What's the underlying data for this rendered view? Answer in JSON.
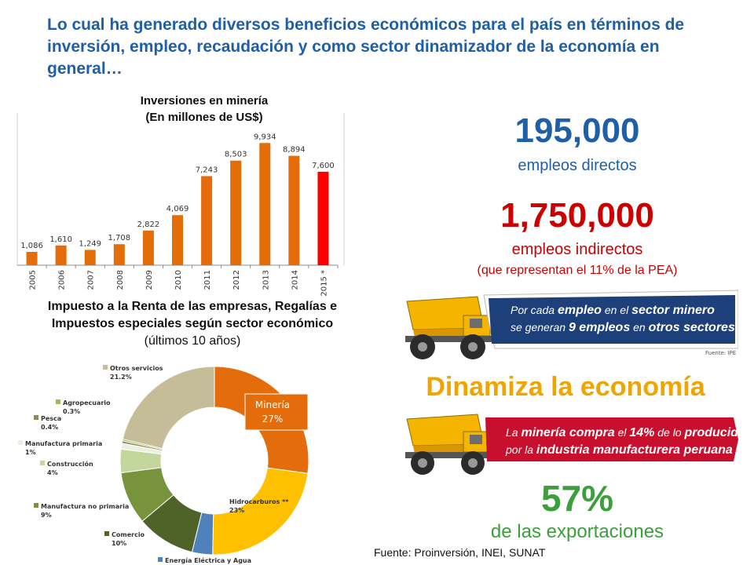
{
  "headline": "Lo cual ha generado diversos beneficios económicos para el país en términos de inversión, empleo, recaudación y como sector dinamizador de la economía en general…",
  "bar_title_line1": "Inversiones en minería",
  "bar_title_line2": "(En millones de US$)",
  "pie_title_line1": "Impuesto a la Renta de las empresas, Regalías e",
  "pie_title_line2": "Impuestos especiales según sector económico",
  "pie_title_line3": "(últimos 10 años)",
  "pie_callout_label": "Minería",
  "pie_callout_value": "27%",
  "stats": {
    "direct_value": "195,000",
    "direct_label": "empleos directos",
    "indirect_value": "1,750,000",
    "indirect_label": "empleos indirectos",
    "indirect_note": "(que representan el 11% de la PEA)",
    "exports_value": "57%",
    "exports_label": "de las exportaciones"
  },
  "dinamiza": "Dinamiza la economía",
  "banner1": {
    "line1a": "Por cada ",
    "line1b": "empleo",
    "line1c": " en el ",
    "line1d": "sector minero",
    "line2a": "se generan ",
    "line2b": "9 empleos",
    "line2c": " en ",
    "line2d": "otros sectores",
    "source": "Fuente: IPE"
  },
  "banner2": {
    "line1a": "La ",
    "line1b": "minería compra",
    "line1c": " el ",
    "line1d": "14%",
    "line1e": " de lo ",
    "line1f": "producido",
    "line2a": "por la ",
    "line2b": "industria manufacturera peruana"
  },
  "source": "Fuente: Proinversión, INEI, SUNAT",
  "colors": {
    "blue": "#1f5fa8",
    "red": "#cc0000",
    "orange": "#e46c0a",
    "gold": "#f0a400",
    "green": "#3c9e3c"
  },
  "chart_data": [
    {
      "type": "bar",
      "title": "Inversiones en minería (En millones de US$)",
      "categories": [
        "2005",
        "2006",
        "2007",
        "2008",
        "2009",
        "2010",
        "2011",
        "2012",
        "2013",
        "2014",
        "2015 *"
      ],
      "values": [
        1086,
        1610,
        1249,
        1708,
        2822,
        4069,
        7243,
        8503,
        9934,
        8894,
        7600
      ],
      "value_labels": [
        "1,086",
        "1,610",
        "1,249",
        "1,708",
        "2,822",
        "4,069",
        "7,243",
        "8,503",
        "9,934",
        "8,894",
        "7,600"
      ],
      "bar_colors": [
        "#e46c0a",
        "#e46c0a",
        "#e46c0a",
        "#e46c0a",
        "#e46c0a",
        "#e46c0a",
        "#e46c0a",
        "#e46c0a",
        "#e46c0a",
        "#e46c0a",
        "#ff0000"
      ],
      "ylim": [
        0,
        10000
      ]
    },
    {
      "type": "pie",
      "donut": true,
      "slices": [
        {
          "label": "Minería",
          "value": 27,
          "color": "#e46c0a"
        },
        {
          "label": "Hidrocarburos **",
          "pct": "23%",
          "value": 23,
          "color": "#ffc000"
        },
        {
          "label": "Energía Eléctrica y Agua",
          "pct": "",
          "value": 3.5,
          "color": "#4f81bd"
        },
        {
          "label": "Comercio",
          "pct": "10%",
          "value": 10,
          "color": "#4f6228"
        },
        {
          "label": "Manufactura no primaria",
          "pct": "9%",
          "value": 9,
          "color": "#77933c"
        },
        {
          "label": "Construcción",
          "pct": "4%",
          "value": 4,
          "color": "#c3d69b"
        },
        {
          "label": "Manufactura primaria",
          "pct": "1%",
          "value": 1,
          "color": "#ebf1de"
        },
        {
          "label": "Pesca",
          "pct": "0.4%",
          "value": 0.4,
          "color": "#938953"
        },
        {
          "label": "Agropecuario",
          "pct": "0.3%",
          "value": 0.3,
          "color": "#9bbb59"
        },
        {
          "label": "Otros servicios",
          "pct": "21.2%",
          "value": 21.2,
          "color": "#c4bd97"
        }
      ]
    }
  ]
}
